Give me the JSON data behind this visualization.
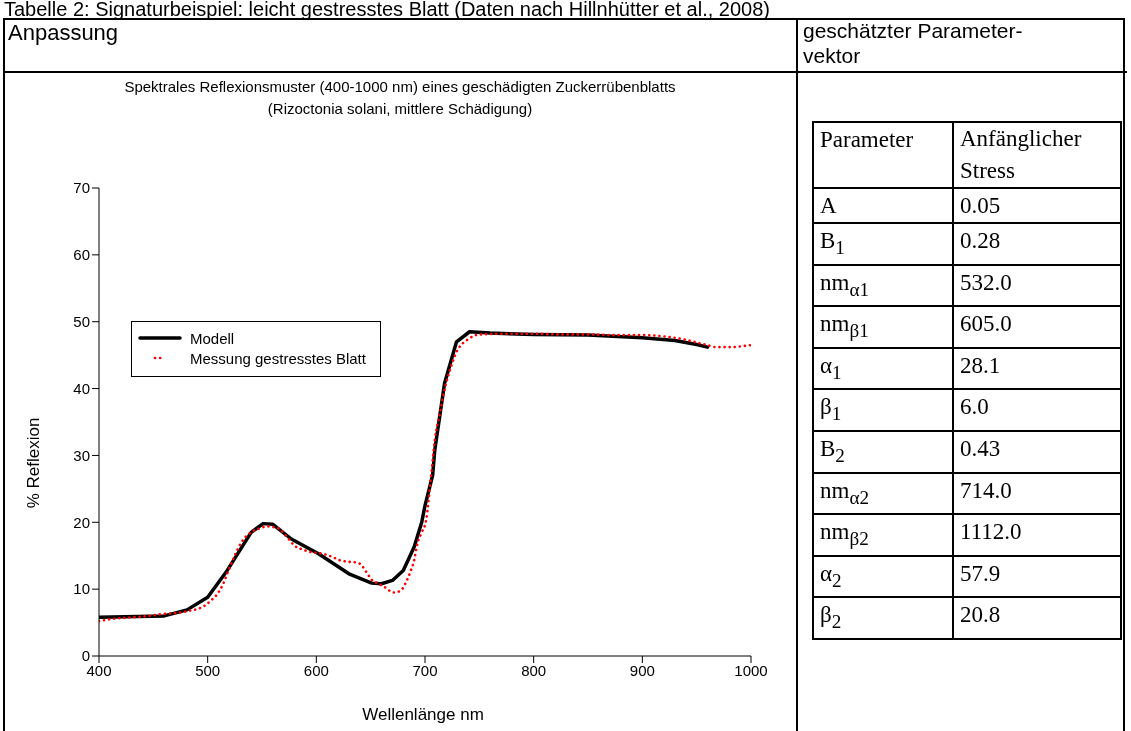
{
  "chart_data": [
    {
      "type": "line",
      "title": "Spektrales Reflexionsmuster (400-1000 nm) eines geschädigten Zuckerrübenblatts",
      "subtitle": "(Rizoctonia solani, mittlere Schädigung)",
      "xlabel": "Wellenlänge nm",
      "ylabel": "% Reflexion",
      "annotations": [
        "Tabelle 2: Signaturbeispiel: leicht gestresstes Blatt (Daten nach Hillnhütter et al., 2008)",
        "Anpassung"
      ],
      "xlim": [
        400,
        1000
      ],
      "xticks": [
        400,
        500,
        600,
        700,
        800,
        900,
        1000
      ],
      "ylim": [
        0,
        70
      ],
      "yticks": [
        0,
        10,
        20,
        30,
        40,
        50,
        60,
        70
      ],
      "grid": false,
      "legend": "top left",
      "series": [
        {
          "name": "Modell",
          "type": "line",
          "color": "#000000",
          "marker": "none",
          "x": [
            400,
            460,
            481,
            500,
            518,
            540,
            551,
            560,
            577,
            602,
            630,
            651,
            660,
            670,
            680,
            690,
            697,
            700,
            707,
            709,
            718,
            729,
            741,
            760,
            800,
            850,
            900,
            930,
            950,
            960
          ],
          "values": [
            5.8,
            6.0,
            6.9,
            8.8,
            12.8,
            18.5,
            19.8,
            19.7,
            17.5,
            15.3,
            12.3,
            10.9,
            10.8,
            11.3,
            12.8,
            16.3,
            20.0,
            22.5,
            27.0,
            30.8,
            40.8,
            47.0,
            48.5,
            48.3,
            48.1,
            48.0,
            47.6,
            47.2,
            46.6,
            46.2
          ]
        },
        {
          "name": "Messung gestresstes Blatt",
          "type": "line",
          "color": "#ff0000",
          "marker": "none",
          "line_style": "dotted",
          "x": [
            400,
            410,
            423,
            440,
            460,
            475,
            484,
            490,
            497,
            503,
            509,
            514,
            518,
            524,
            531,
            536,
            540,
            548,
            555,
            560,
            566,
            573,
            580,
            588,
            596,
            602,
            608,
            615,
            622,
            629,
            636,
            640,
            643,
            647,
            651,
            657,
            663,
            667,
            671,
            675,
            679,
            683,
            687,
            690,
            693,
            697,
            701,
            705,
            709,
            714,
            718,
            724,
            730,
            735,
            739,
            745,
            750,
            775,
            800,
            825,
            850,
            875,
            900,
            920,
            940,
            950,
            960,
            968,
            975,
            983,
            990,
            1000
          ],
          "values": [
            5.2,
            5.5,
            5.7,
            5.9,
            6.3,
            6.5,
            6.8,
            7.0,
            7.5,
            8.3,
            9.3,
            10.7,
            12.3,
            14.7,
            17.0,
            18.0,
            18.5,
            19.1,
            19.4,
            19.3,
            19.0,
            17.8,
            16.5,
            15.9,
            15.5,
            15.4,
            15.2,
            14.8,
            14.3,
            14.1,
            14.0,
            13.8,
            13.3,
            12.3,
            11.4,
            10.8,
            10.3,
            9.8,
            9.5,
            9.6,
            10.0,
            11.2,
            12.8,
            14.3,
            16.8,
            18.5,
            20.3,
            26.0,
            32.3,
            36.5,
            39.8,
            43.3,
            45.8,
            46.8,
            47.3,
            47.9,
            48.1,
            48.2,
            48.2,
            48.1,
            48.1,
            48.0,
            48.0,
            47.8,
            47.3,
            46.9,
            46.5,
            46.2,
            46.2,
            46.2,
            46.3,
            46.5
          ]
        }
      ]
    },
    {
      "type": "other",
      "title": "geschätzter Parameter-vektor",
      "annotations": [
        "Parameter",
        "Anfänglicher Stress"
      ],
      "categories": [
        "A",
        "B$_{1}$",
        "nm$_{α1}$",
        "nm$_{β1}$",
        "α$_{1}$",
        "β$_{1}$",
        "B$_{2}$",
        "nm$_{α2}$",
        "nm$_{β2}$",
        "α$_{2}$",
        "β$_{2}$"
      ],
      "values": [
        0.05,
        0.28,
        532.0,
        605.0,
        28.1,
        6.0,
        0.43,
        714.0,
        1112.0,
        57.9,
        20.8
      ],
      "value_labels": [
        "0.05",
        "0.28",
        "532.0",
        "605.0",
        "28.1",
        "6.0",
        "0.43",
        "714.0",
        "1112.0",
        "57.9",
        "20.8"
      ]
    }
  ]
}
